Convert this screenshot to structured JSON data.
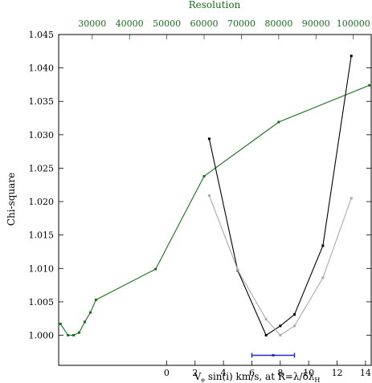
{
  "chart_data": {
    "type": "line",
    "ylabel": "Chi-square",
    "xlabel_main": "V",
    "xlabel_sub_e": "e",
    "xlabel_rest": " sin(i) km/s, at R=λ/δλ",
    "xlabel_sub_h": "H",
    "top_xlabel": "Resolution",
    "bottom_axis": {
      "ticks": [
        0,
        2,
        4,
        6,
        8,
        10,
        12,
        14
      ],
      "labels": [
        "0",
        "2",
        "4",
        "6",
        "8",
        "10",
        "12",
        "14"
      ],
      "range": [
        -7.6,
        14.4
      ]
    },
    "top_axis": {
      "ticks": [
        30000,
        40000,
        50000,
        60000,
        70000,
        80000,
        90000,
        100000
      ],
      "labels": [
        "30000",
        "40000",
        "50000",
        "60000",
        "70000",
        "80000",
        "90000",
        "100000"
      ],
      "range": [
        21000,
        104800
      ]
    },
    "y_axis": {
      "ticks": [
        1.0,
        1.005,
        1.01,
        1.015,
        1.02,
        1.025,
        1.03,
        1.035,
        1.04,
        1.045
      ],
      "labels": [
        "1.000",
        "1.005",
        "1.010",
        "1.015",
        "1.020",
        "1.025",
        "1.030",
        "1.035",
        "1.040",
        "1.045"
      ],
      "range": [
        0.9955,
        1.045
      ]
    },
    "series": [
      {
        "axis": "top",
        "color": "#1a6e1a",
        "x": [
          21500,
          23500,
          25000,
          26500,
          28000,
          29500,
          31000,
          47000,
          60000,
          80000,
          104300
        ],
        "y": [
          1.0017,
          1.0,
          1.0,
          1.0004,
          1.002,
          1.0034,
          1.0053,
          1.0099,
          1.0238,
          1.0319,
          1.0374
        ]
      },
      {
        "axis": "bottom",
        "color": "#000000",
        "x": [
          3,
          5,
          7,
          8,
          9,
          11,
          13
        ],
        "y": [
          1.0294,
          1.0097,
          1.0,
          1.0014,
          1.0031,
          1.0134,
          1.0418
        ]
      },
      {
        "axis": "bottom",
        "color": "#aaaaaa",
        "x": [
          3,
          5,
          7,
          8,
          9,
          11,
          13
        ],
        "y": [
          1.0209,
          1.0098,
          1.0024,
          1.0,
          1.0014,
          1.0086,
          1.0205
        ]
      }
    ],
    "error_bar": {
      "axis": "bottom",
      "color": "#1f2fbf",
      "center": 7.5,
      "low": 6.0,
      "high": 9.0,
      "y": 0.997
    }
  }
}
